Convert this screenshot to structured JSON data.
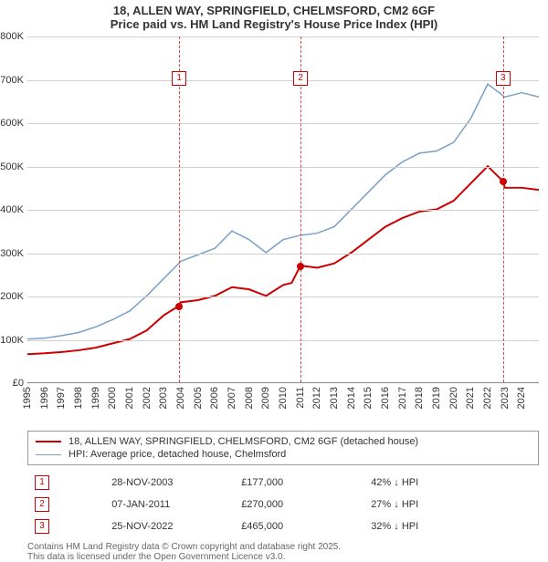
{
  "title": {
    "line1": "18, ALLEN WAY, SPRINGFIELD, CHELMSFORD, CM2 6GF",
    "line2": "Price paid vs. HM Land Registry's House Price Index (HPI)"
  },
  "chart": {
    "type": "line",
    "background_color": "#ffffff",
    "grid_color": "#d0d0d0",
    "x_years": [
      1995,
      1996,
      1997,
      1998,
      1999,
      2000,
      2001,
      2002,
      2003,
      2004,
      2005,
      2006,
      2007,
      2008,
      2009,
      2010,
      2011,
      2012,
      2013,
      2014,
      2015,
      2016,
      2017,
      2018,
      2019,
      2020,
      2021,
      2022,
      2023,
      2024
    ],
    "x_range": [
      1995,
      2025
    ],
    "y_ticks": [
      0,
      100000,
      200000,
      300000,
      400000,
      500000,
      600000,
      700000,
      800000
    ],
    "y_tick_labels": [
      "£0",
      "£100K",
      "£200K",
      "£300K",
      "£400K",
      "£500K",
      "£600K",
      "£700K",
      "£800K"
    ],
    "y_range": [
      0,
      800000
    ],
    "series": [
      {
        "id": "price_paid",
        "label": "18, ALLEN WAY, SPRINGFIELD, CHELMSFORD, CM2 6GF (detached house)",
        "color": "#cc0000",
        "line_width": 2,
        "show_points": false,
        "data": [
          [
            1995,
            65000
          ],
          [
            1996,
            67000
          ],
          [
            1997,
            70000
          ],
          [
            1998,
            74000
          ],
          [
            1999,
            80000
          ],
          [
            2000,
            90000
          ],
          [
            2001,
            100000
          ],
          [
            2002,
            120000
          ],
          [
            2003,
            155000
          ],
          [
            2003.9,
            177000
          ],
          [
            2004,
            185000
          ],
          [
            2005,
            190000
          ],
          [
            2006,
            200000
          ],
          [
            2007,
            220000
          ],
          [
            2008,
            215000
          ],
          [
            2009,
            200000
          ],
          [
            2010,
            225000
          ],
          [
            2010.5,
            230000
          ],
          [
            2011.02,
            270000
          ],
          [
            2012,
            265000
          ],
          [
            2013,
            275000
          ],
          [
            2014,
            300000
          ],
          [
            2015,
            330000
          ],
          [
            2016,
            360000
          ],
          [
            2017,
            380000
          ],
          [
            2018,
            395000
          ],
          [
            2019,
            400000
          ],
          [
            2020,
            420000
          ],
          [
            2021,
            460000
          ],
          [
            2022,
            500000
          ],
          [
            2022.9,
            465000
          ],
          [
            2023,
            450000
          ],
          [
            2024,
            450000
          ],
          [
            2025,
            445000
          ]
        ],
        "dots": [
          {
            "x": 2003.9,
            "y": 177000
          },
          {
            "x": 2011.02,
            "y": 270000
          },
          {
            "x": 2022.9,
            "y": 465000
          }
        ]
      },
      {
        "id": "hpi",
        "label": "HPI: Average price, detached house, Chelmsford",
        "color": "#7a9fc8",
        "line_width": 1.5,
        "show_points": false,
        "data": [
          [
            1995,
            100000
          ],
          [
            1996,
            102000
          ],
          [
            1997,
            108000
          ],
          [
            1998,
            115000
          ],
          [
            1999,
            128000
          ],
          [
            2000,
            145000
          ],
          [
            2001,
            165000
          ],
          [
            2002,
            200000
          ],
          [
            2003,
            240000
          ],
          [
            2004,
            280000
          ],
          [
            2005,
            295000
          ],
          [
            2006,
            310000
          ],
          [
            2007,
            350000
          ],
          [
            2008,
            330000
          ],
          [
            2009,
            300000
          ],
          [
            2010,
            330000
          ],
          [
            2011,
            340000
          ],
          [
            2012,
            345000
          ],
          [
            2013,
            360000
          ],
          [
            2014,
            400000
          ],
          [
            2015,
            440000
          ],
          [
            2016,
            480000
          ],
          [
            2017,
            510000
          ],
          [
            2018,
            530000
          ],
          [
            2019,
            535000
          ],
          [
            2020,
            555000
          ],
          [
            2021,
            610000
          ],
          [
            2022,
            690000
          ],
          [
            2023,
            660000
          ],
          [
            2024,
            670000
          ],
          [
            2025,
            660000
          ]
        ]
      }
    ],
    "events": [
      {
        "n": "1",
        "x": 2003.9,
        "top_y": 720000
      },
      {
        "n": "2",
        "x": 2011.02,
        "top_y": 720000
      },
      {
        "n": "3",
        "x": 2022.9,
        "top_y": 720000
      }
    ],
    "label_fontsize": 11
  },
  "legend": {
    "items": [
      {
        "color": "#cc0000",
        "width": 2,
        "text": "18, ALLEN WAY, SPRINGFIELD, CHELMSFORD, CM2 6GF (detached house)"
      },
      {
        "color": "#7a9fc8",
        "width": 1.5,
        "text": "HPI: Average price, detached house, Chelmsford"
      }
    ]
  },
  "events_table": {
    "rows": [
      {
        "n": "1",
        "date": "28-NOV-2003",
        "price": "£177,000",
        "delta": "42% ↓ HPI"
      },
      {
        "n": "2",
        "date": "07-JAN-2011",
        "price": "£270,000",
        "delta": "27% ↓ HPI"
      },
      {
        "n": "3",
        "date": "25-NOV-2022",
        "price": "£465,000",
        "delta": "32% ↓ HPI"
      }
    ]
  },
  "footer": {
    "line1": "Contains HM Land Registry data © Crown copyright and database right 2025.",
    "line2": "This data is licensed under the Open Government Licence v3.0."
  }
}
